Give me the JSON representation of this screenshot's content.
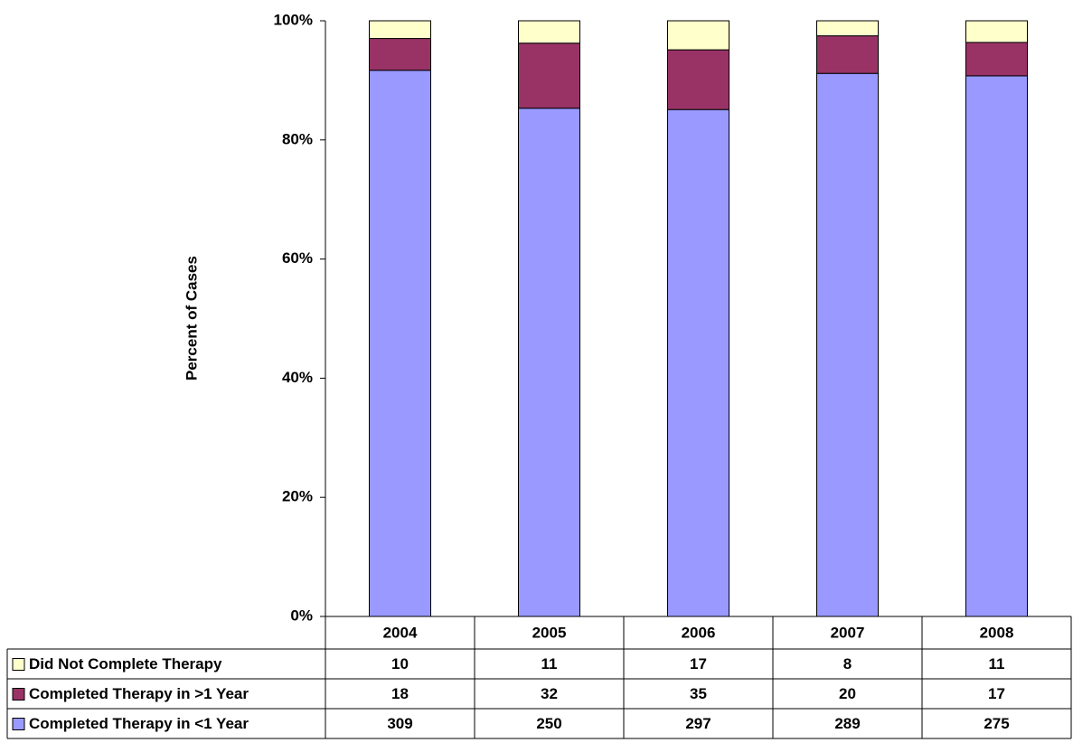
{
  "chart_data": {
    "type": "bar",
    "stacking": "percent",
    "y_label": "Percent of Cases",
    "categories": [
      "2004",
      "2005",
      "2006",
      "2007",
      "2008"
    ],
    "series": [
      {
        "name": "Did Not Complete Therapy",
        "color": "#ffffcc",
        "values": [
          10,
          11,
          17,
          8,
          11
        ]
      },
      {
        "name": "Completed Therapy in >1 Year",
        "color": "#993366",
        "values": [
          18,
          32,
          35,
          20,
          17
        ]
      },
      {
        "name": "Completed Therapy in <1 Year",
        "color": "#9999ff",
        "values": [
          309,
          250,
          297,
          289,
          275
        ]
      }
    ],
    "ylim": [
      0,
      100
    ],
    "yticks": [
      {
        "value": 0,
        "label": "0%"
      },
      {
        "value": 20,
        "label": "20%"
      },
      {
        "value": 40,
        "label": "40%"
      },
      {
        "value": 60,
        "label": "60%"
      },
      {
        "value": 80,
        "label": "80%"
      },
      {
        "value": 100,
        "label": "100%"
      }
    ],
    "grid": false
  }
}
